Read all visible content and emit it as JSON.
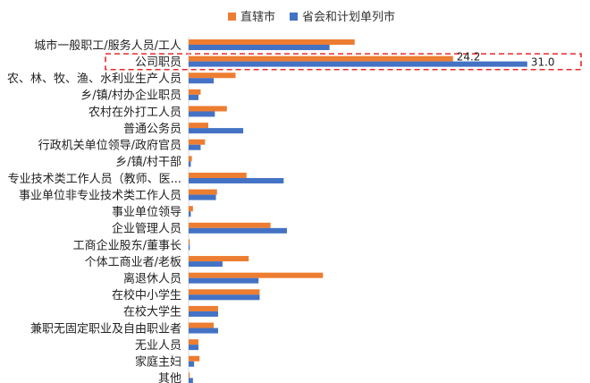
{
  "chart_data": {
    "type": "bar",
    "orientation": "horizontal",
    "categories": [
      "城市一般职工/服务人员/工人",
      "公司职员",
      "农、林、牧、渔、水利业生产人员",
      "乡/镇/村办企业职员",
      "农村在外打工人员",
      "普通公务员",
      "行政机关单位领导/政府官员",
      "乡/镇/村干部",
      "专业技术类工作人员（教师、医...",
      "事业单位非专业技术类工作人员",
      "事业单位领导",
      "企业管理人员",
      "工商企业股东/董事长",
      "个体工商业者/老板",
      "离退休人员",
      "在校中小学生",
      "在校大学生",
      "兼职无固定职业及自由职业者",
      "无业人员",
      "家庭主妇",
      "其他"
    ],
    "series": [
      {
        "name": "直辖市",
        "color": "#ED7D31",
        "values": [
          15.2,
          24.2,
          4.3,
          1.1,
          3.5,
          1.8,
          1.5,
          0.3,
          5.3,
          2.6,
          0.4,
          7.5,
          0.1,
          5.5,
          12.3,
          6.5,
          2.7,
          2.3,
          0.9,
          1.0,
          0.1
        ]
      },
      {
        "name": "省会和计划单列市",
        "color": "#4472C4",
        "values": [
          12.9,
          31.0,
          2.3,
          0.9,
          2.4,
          5.0,
          1.1,
          0.2,
          8.7,
          2.5,
          0.2,
          9.0,
          0.1,
          3.1,
          6.4,
          6.5,
          2.7,
          2.7,
          0.9,
          0.5,
          0.4
        ]
      }
    ],
    "data_labels": [
      {
        "category_index": 1,
        "series_index": 0,
        "text": "24.2"
      },
      {
        "category_index": 1,
        "series_index": 1,
        "text": "31.0"
      }
    ],
    "xlim": [
      0,
      32
    ],
    "x_axis_visible": false,
    "grid": false,
    "legend": "top-center",
    "highlight": {
      "category_index": 1,
      "style": "dashed red box",
      "color": "#E8282B"
    }
  }
}
